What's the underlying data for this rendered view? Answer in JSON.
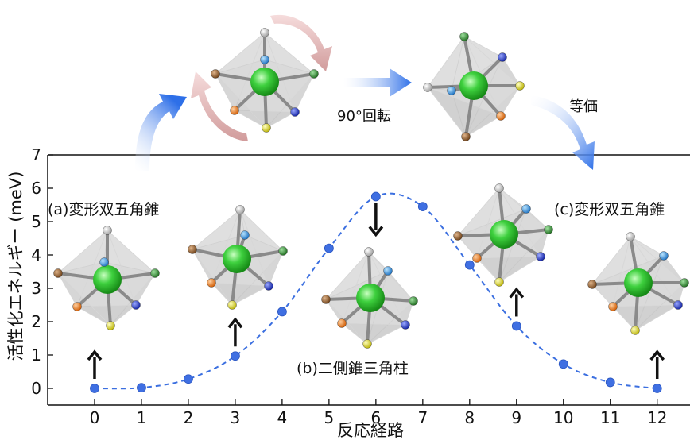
{
  "chart_data": {
    "type": "line",
    "title": "",
    "xlabel": "反応経路",
    "ylabel": "活性化エネルギー (meV)",
    "xlim": [
      -1,
      12.7
    ],
    "ylim": [
      -0.5,
      7
    ],
    "x_ticks": [
      "0",
      "1",
      "2",
      "3",
      "4",
      "5",
      "6",
      "7",
      "8",
      "9",
      "10",
      "11",
      "12"
    ],
    "y_ticks": [
      "0",
      "1",
      "2",
      "3",
      "4",
      "5",
      "6",
      "7"
    ],
    "series": [
      {
        "x": [
          0,
          1,
          2,
          3,
          4,
          5,
          6,
          7,
          8,
          9,
          10,
          11,
          12
        ],
        "y": [
          0,
          0.02,
          0.28,
          0.97,
          2.3,
          4.2,
          5.75,
          5.45,
          3.7,
          1.87,
          0.73,
          0.18,
          0
        ],
        "style": "dashed-fit-with-points",
        "color": "#3b6fe0"
      }
    ],
    "annotations": {
      "structure_a": "(a)変形双五角錐",
      "structure_b": "(b)二側錐三角柱",
      "structure_c": "(c)変形双五角錐",
      "rotation_label": "90°回転",
      "equivalent_label": "等価"
    },
    "arrows": [
      {
        "x": 0,
        "direction": "up"
      },
      {
        "x": 3,
        "direction": "up"
      },
      {
        "x": 6,
        "direction": "down"
      },
      {
        "x": 9,
        "direction": "up"
      },
      {
        "x": 12,
        "direction": "up"
      }
    ]
  },
  "colors": {
    "curve": "#3b6fe0",
    "point": "#3f6fe2",
    "center_atom": "#3ed03e",
    "ligand_white": "#f2f2f2",
    "ligand_blue": "#2a8ee0",
    "ligand_green": "#2d8d2d",
    "ligand_brown": "#8b5a2b",
    "ligand_orange": "#f07818",
    "ligand_navy": "#1c2ec8",
    "ligand_yellow": "#e6e21a",
    "rotation_arrow": "#d9a4a4"
  }
}
